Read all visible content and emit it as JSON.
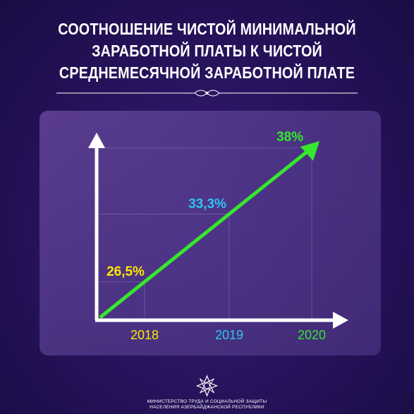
{
  "header": {
    "title_lines": [
      "СООТНОШЕНИЕ ЧИСТОЙ МИНИМАЛЬНОЙ",
      "ЗАРАБОТНОЙ ПЛАТЫ К ЧИСТОЙ",
      "СРЕДНЕМЕСЯЧНОЙ ЗАРАБОТНОЙ ПЛАТЕ"
    ]
  },
  "chart_data": {
    "type": "line",
    "x": [
      "2018",
      "2019",
      "2020"
    ],
    "series": [
      {
        "values": [
          26.5,
          33.3,
          38
        ]
      }
    ],
    "data_labels": [
      "26,5%",
      "33,3%",
      "38%"
    ],
    "label_colors": [
      "#ffe600",
      "#2ec5f0",
      "#35e82c"
    ],
    "line_color": "#35e82c",
    "grid": true
  },
  "footer": {
    "org_lines": [
      "МИНИСТЕРСТВО ТРУДА И СОЦИАЛЬНОЙ ЗАЩИТЫ",
      "НАСЕЛЕНИЯ АЗЕРБАЙДЖАНСКОЙ РЕСПУБЛИКИ"
    ],
    "emblem_icon": "emblem-icon"
  }
}
